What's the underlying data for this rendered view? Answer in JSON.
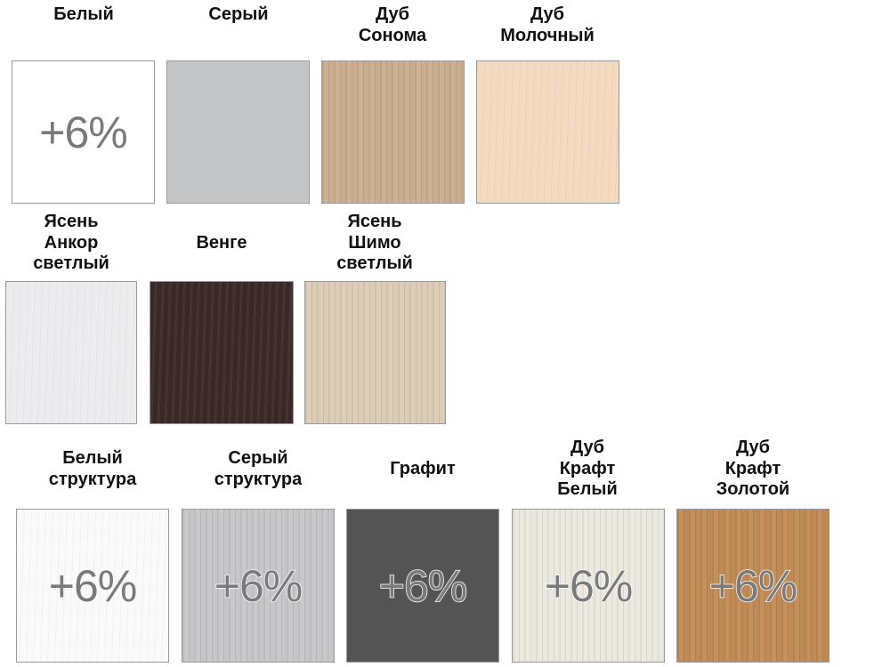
{
  "swatches": [
    {
      "name": "Белый",
      "badge": "+6%",
      "color": "#ffffff"
    },
    {
      "name": "Серый",
      "badge": "",
      "color": "#c4c5c7"
    },
    {
      "name": "Дуб\nСонома",
      "badge": "",
      "color": "#c9ad8e"
    },
    {
      "name": "Дуб\nМолочный",
      "badge": "",
      "color": "#f3d9bf"
    },
    {
      "name": "Ясень\nАнкор\nсветлый",
      "badge": "",
      "color": "#ecebed"
    },
    {
      "name": "Венге",
      "badge": "",
      "color": "#3a2826"
    },
    {
      "name": "Ясень\nШимо\nсветлый",
      "badge": "",
      "color": "#dccbb5"
    },
    {
      "name": "Белый\nструктура",
      "badge": "+6%",
      "color": "#fafafa"
    },
    {
      "name": "Серый\nструктура",
      "badge": "+6%",
      "color": "#c6c6c8"
    },
    {
      "name": "Графит",
      "badge": "+6%",
      "color": "#545454"
    },
    {
      "name": "Дуб\nКрафт\nБелый",
      "badge": "+6%",
      "color": "#ebe8df"
    },
    {
      "name": "Дуб\nКрафт\nЗолотой",
      "badge": "+6%",
      "color": "#c08a55"
    }
  ]
}
